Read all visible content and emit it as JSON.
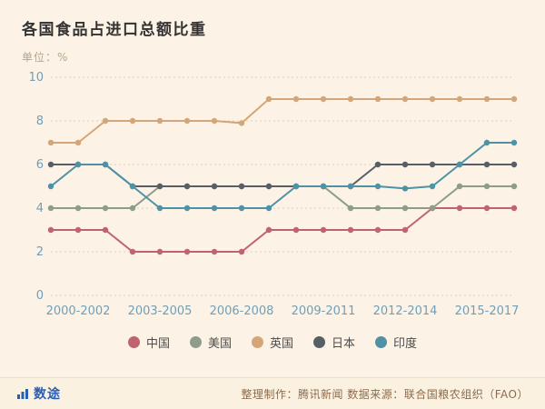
{
  "page": {
    "title": "各国食品占进口总额比重",
    "unit_label": "单位：%"
  },
  "colors": {
    "background": "#fcf3e6",
    "axis_label": "#6f9fb8",
    "gridline": "#ddd2c1",
    "title": "#333333",
    "credit": "#8c6b4c",
    "logo_blue": "#2a5db0"
  },
  "chart_data": {
    "type": "line",
    "title": "各国食品占进口总额比重",
    "unit": "%",
    "x": [
      2000,
      2001,
      2002,
      2003,
      2004,
      2005,
      2006,
      2007,
      2008,
      2009,
      2010,
      2011,
      2012,
      2013,
      2014,
      2015,
      2016,
      2017
    ],
    "x_tick_labels": [
      "2000-2002",
      "2003-2005",
      "2006-2008",
      "2009-2011",
      "2012-2014",
      "2015-2017"
    ],
    "ylim": [
      0,
      10
    ],
    "y_ticks": [
      0,
      2,
      4,
      6,
      8,
      10
    ],
    "grid": "horizontal-dotted",
    "legend_position": "bottom",
    "series": [
      {
        "id": "china",
        "name": "中国",
        "color": "#c06370",
        "values": [
          3,
          3,
          3,
          2,
          2,
          2,
          2,
          2,
          3,
          3,
          3,
          3,
          3,
          3,
          4,
          4,
          4,
          4
        ]
      },
      {
        "id": "usa",
        "name": "美国",
        "color": "#8d9c8b",
        "values": [
          4,
          4,
          4,
          4,
          5,
          5,
          5,
          5,
          5,
          5,
          5,
          4,
          4,
          4,
          4,
          5,
          5,
          5
        ]
      },
      {
        "id": "uk",
        "name": "英国",
        "color": "#d4a578",
        "values": [
          7,
          7,
          8,
          8,
          8,
          8,
          8,
          7.9,
          9,
          9,
          9,
          9,
          9,
          9,
          9,
          9,
          9,
          9
        ]
      },
      {
        "id": "japan",
        "name": "日本",
        "color": "#585e66",
        "values": [
          6,
          6,
          6,
          5,
          5,
          5,
          5,
          5,
          5,
          5,
          5,
          5,
          6,
          6,
          6,
          6,
          6,
          6
        ]
      },
      {
        "id": "india",
        "name": "印度",
        "color": "#4e92a5",
        "values": [
          5,
          6,
          6,
          5,
          4,
          4,
          4,
          4,
          4,
          5,
          5,
          5,
          5,
          4.9,
          5,
          6,
          7,
          7
        ]
      }
    ]
  },
  "footer": {
    "logo_text": "数途",
    "credit": "整理制作：腾讯新闻  数据来源：联合国粮农组织（FAO）"
  }
}
